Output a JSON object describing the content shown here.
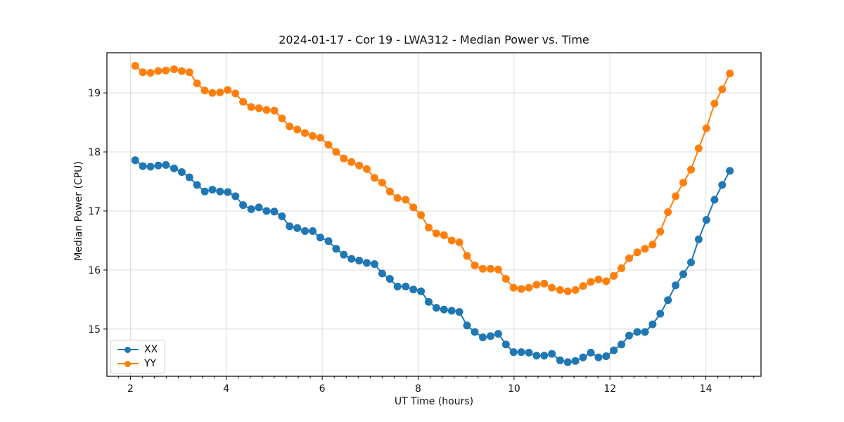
{
  "figure": {
    "title": "2024-01-17 - Cor 19 - LWA312 - Median Power vs. Time",
    "xlabel": "UT Time (hours)",
    "ylabel": "Median Power (CPU)"
  },
  "legend": {
    "items": [
      {
        "label": "XX",
        "color": "#1f77b4"
      },
      {
        "label": "YY",
        "color": "#ff7f0e"
      }
    ]
  },
  "chart_data": {
    "type": "line",
    "title": "2024-01-17 - Cor 19 - LWA312 - Median Power vs. Time",
    "xlabel": "UT Time (hours)",
    "ylabel": "Median Power (CPU)",
    "xlim": [
      1.51,
      15.15
    ],
    "ylim": [
      14.2,
      19.68
    ],
    "xticks": [
      2,
      4,
      6,
      8,
      10,
      12,
      14
    ],
    "yticks": [
      15,
      16,
      17,
      18,
      19
    ],
    "minor_xtick_step": 0.25,
    "grid": true,
    "grid_color": "#dcdcdc",
    "legend_position": "lower left",
    "marker": "circle",
    "x": [
      2.1,
      2.26,
      2.42,
      2.58,
      2.74,
      2.91,
      3.07,
      3.23,
      3.39,
      3.55,
      3.71,
      3.87,
      4.03,
      4.19,
      4.35,
      4.52,
      4.68,
      4.84,
      5.0,
      5.16,
      5.32,
      5.48,
      5.64,
      5.8,
      5.96,
      6.13,
      6.29,
      6.45,
      6.61,
      6.77,
      6.93,
      7.09,
      7.25,
      7.41,
      7.57,
      7.74,
      7.9,
      8.06,
      8.22,
      8.38,
      8.54,
      8.7,
      8.86,
      9.02,
      9.18,
      9.35,
      9.51,
      9.67,
      9.83,
      9.99,
      10.15,
      10.31,
      10.47,
      10.63,
      10.79,
      10.96,
      11.12,
      11.28,
      11.44,
      11.6,
      11.76,
      11.92,
      12.08,
      12.24,
      12.4,
      12.57,
      12.73,
      12.89,
      13.05,
      13.21,
      13.37,
      13.53,
      13.69,
      13.85,
      14.01,
      14.18,
      14.34,
      14.5
    ],
    "series": [
      {
        "name": "XX",
        "color": "#1f77b4",
        "values": [
          17.86,
          17.76,
          17.75,
          17.77,
          17.78,
          17.72,
          17.66,
          17.57,
          17.44,
          17.33,
          17.36,
          17.33,
          17.32,
          17.25,
          17.1,
          17.03,
          17.06,
          17.0,
          16.99,
          16.91,
          16.74,
          16.71,
          16.66,
          16.66,
          16.55,
          16.49,
          16.36,
          16.26,
          16.19,
          16.16,
          16.12,
          16.1,
          15.94,
          15.85,
          15.72,
          15.72,
          15.67,
          15.64,
          15.46,
          15.36,
          15.33,
          15.31,
          15.29,
          15.06,
          14.95,
          14.86,
          14.88,
          14.92,
          14.74,
          14.61,
          14.61,
          14.6,
          14.55,
          14.55,
          14.58,
          14.47,
          14.44,
          14.46,
          14.52,
          14.6,
          14.52,
          14.54,
          14.64,
          14.74,
          14.89,
          14.95,
          14.95,
          15.08,
          15.26,
          15.49,
          15.74,
          15.93,
          16.13,
          16.52,
          16.85,
          17.19,
          17.44,
          17.68
        ]
      },
      {
        "name": "YY",
        "color": "#ff7f0e",
        "values": [
          19.46,
          19.35,
          19.34,
          19.37,
          19.38,
          19.4,
          19.37,
          19.35,
          19.16,
          19.04,
          19.0,
          19.01,
          19.05,
          18.99,
          18.85,
          18.76,
          18.74,
          18.71,
          18.7,
          18.57,
          18.43,
          18.38,
          18.32,
          18.27,
          18.24,
          18.12,
          18.0,
          17.89,
          17.83,
          17.77,
          17.71,
          17.56,
          17.48,
          17.33,
          17.22,
          17.19,
          17.06,
          16.93,
          16.72,
          16.62,
          16.59,
          16.5,
          16.47,
          16.24,
          16.08,
          16.02,
          16.02,
          16.01,
          15.85,
          15.7,
          15.68,
          15.7,
          15.75,
          15.77,
          15.7,
          15.66,
          15.64,
          15.66,
          15.73,
          15.8,
          15.84,
          15.81,
          15.9,
          16.03,
          16.2,
          16.3,
          16.36,
          16.43,
          16.65,
          16.98,
          17.25,
          17.48,
          17.7,
          18.06,
          18.4,
          18.82,
          19.06,
          19.33
        ]
      }
    ]
  }
}
